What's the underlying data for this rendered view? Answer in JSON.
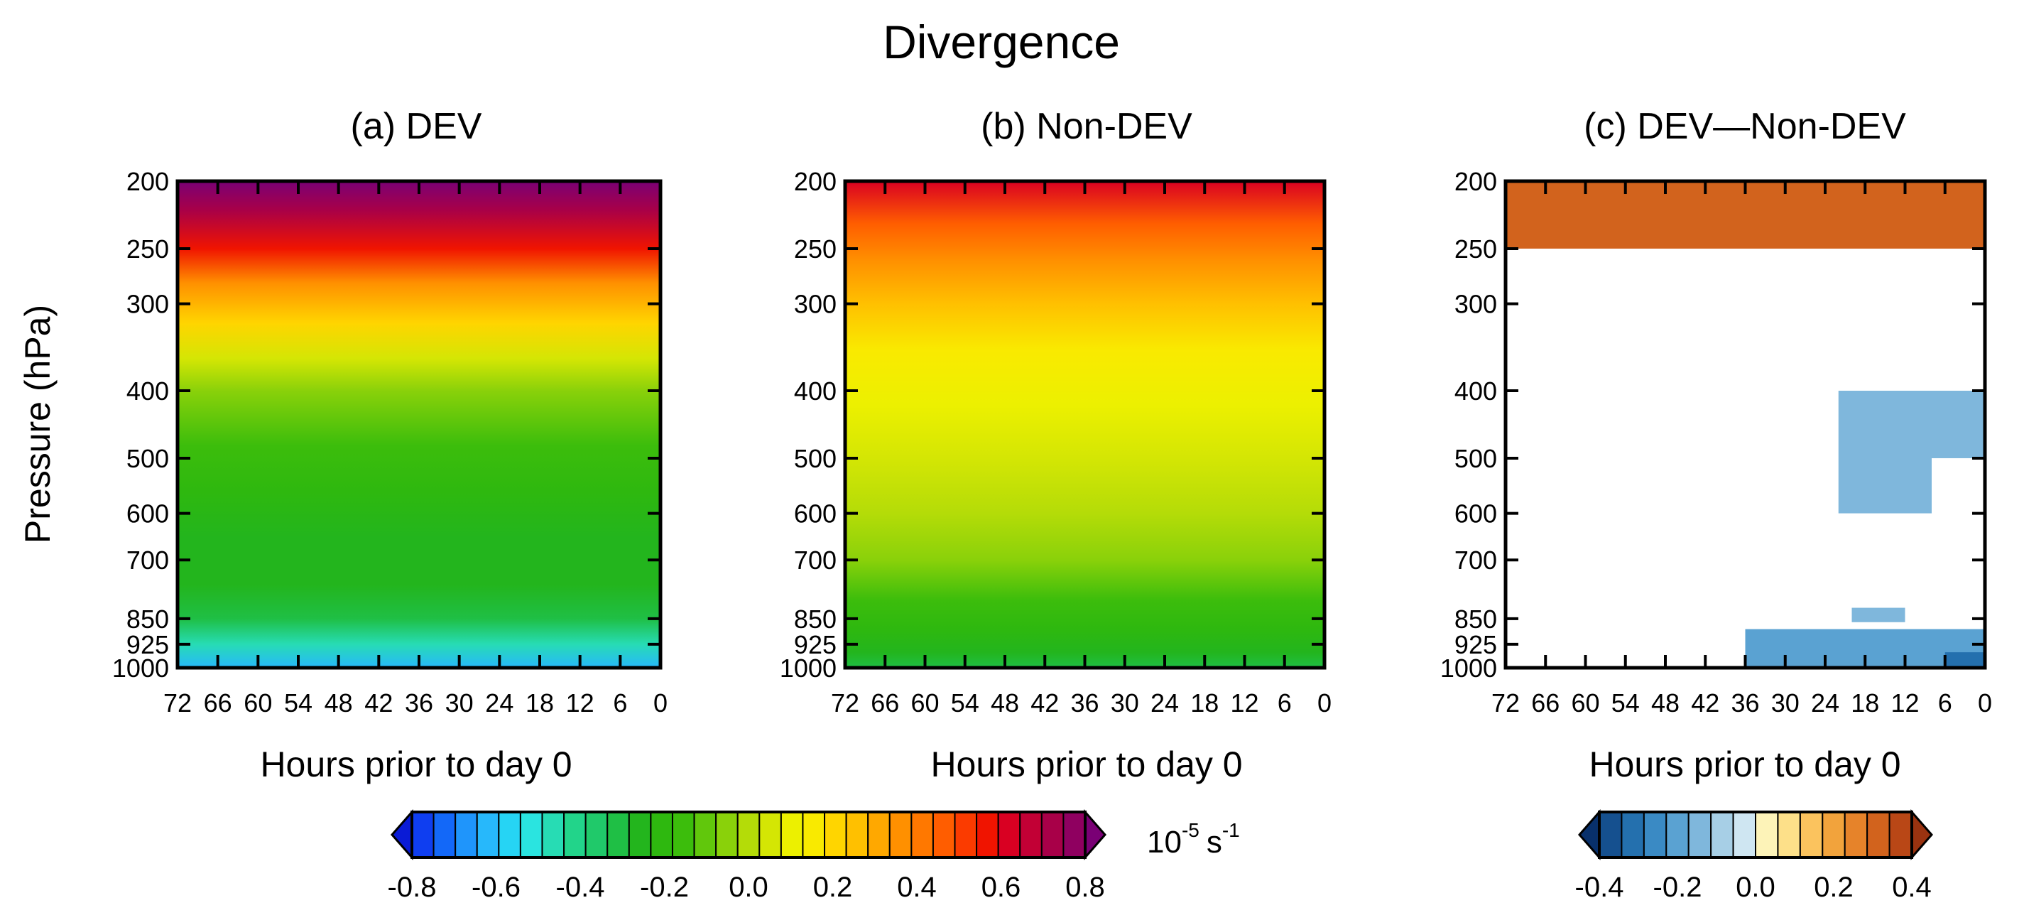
{
  "chart_data": {
    "type": "heatmap",
    "title": "Divergence",
    "units_base": "10",
    "units_exp": "-5",
    "units_rest": "s",
    "units_exp2": "-1",
    "ylabel": "Pressure (hPa)",
    "xlabel": "Hours prior to day 0",
    "x_ticks": [
      72,
      66,
      60,
      54,
      48,
      42,
      36,
      30,
      24,
      18,
      12,
      6,
      0
    ],
    "x_range": [
      72,
      0
    ],
    "y_ticks": [
      200,
      250,
      300,
      400,
      500,
      600,
      700,
      850,
      925,
      1000
    ],
    "y_range": [
      200,
      1000
    ],
    "y_scale": "log",
    "panels": [
      {
        "id": "a",
        "title": "(a) DEV",
        "description": "Strong upper-level divergence near 200 hPa, weak convergence in the low levels",
        "profile": [
          {
            "p": 200,
            "value": 0.8
          },
          {
            "p": 220,
            "value": 0.68
          },
          {
            "p": 250,
            "value": 0.52
          },
          {
            "p": 280,
            "value": 0.34
          },
          {
            "p": 320,
            "value": 0.18
          },
          {
            "p": 360,
            "value": 0.04
          },
          {
            "p": 400,
            "value": -0.06
          },
          {
            "p": 480,
            "value": -0.15
          },
          {
            "p": 560,
            "value": -0.2
          },
          {
            "p": 650,
            "value": -0.23
          },
          {
            "p": 760,
            "value": -0.26
          },
          {
            "p": 850,
            "value": -0.3
          },
          {
            "p": 925,
            "value": -0.42
          },
          {
            "p": 1000,
            "value": -0.6
          }
        ]
      },
      {
        "id": "b",
        "title": "(b) Non-DEV",
        "description": "Moderate upper-level divergence, weak low-level convergence",
        "profile": [
          {
            "p": 200,
            "value": 0.58
          },
          {
            "p": 230,
            "value": 0.45
          },
          {
            "p": 260,
            "value": 0.32
          },
          {
            "p": 300,
            "value": 0.22
          },
          {
            "p": 350,
            "value": 0.14
          },
          {
            "p": 420,
            "value": 0.08
          },
          {
            "p": 500,
            "value": 0.03
          },
          {
            "p": 600,
            "value": -0.02
          },
          {
            "p": 700,
            "value": -0.07
          },
          {
            "p": 800,
            "value": -0.13
          },
          {
            "p": 880,
            "value": -0.2
          },
          {
            "p": 950,
            "value": -0.26
          },
          {
            "p": 1000,
            "value": -0.3
          }
        ]
      },
      {
        "id": "c",
        "title": "(c) DEV—Non-DEV",
        "description": "Difference shaded only where significant",
        "regions": [
          {
            "name": "upper-positive",
            "hours": [
              72,
              0
            ],
            "p": [
              200,
              250
            ],
            "value": 0.3
          },
          {
            "name": "mid-negative-a",
            "hours": [
              22,
              8
            ],
            "p": [
              400,
              600
            ],
            "value": -0.15
          },
          {
            "name": "mid-negative-b",
            "hours": [
              8,
              0
            ],
            "p": [
              400,
              500
            ],
            "value": -0.15
          },
          {
            "name": "low-negative-a",
            "hours": [
              20,
              12
            ],
            "p": [
              820,
              860
            ],
            "value": -0.15
          },
          {
            "name": "low-negative-b",
            "hours": [
              36,
              0
            ],
            "p": [
              880,
              1000
            ],
            "value": -0.2
          },
          {
            "name": "low-negative-c",
            "hours": [
              6,
              0
            ],
            "p": [
              950,
              1000
            ],
            "value": -0.3
          }
        ]
      }
    ],
    "colorbars": [
      {
        "id": "main",
        "labels": [
          "-0.8",
          "-0.6",
          "-0.4",
          "-0.2",
          "0.0",
          "0.2",
          "0.4",
          "0.6",
          "0.8"
        ],
        "range": [
          -0.8,
          0.8
        ],
        "colors": [
          "#0a1bd6",
          "#0f3ef0",
          "#1368f8",
          "#1f95fb",
          "#27b8fb",
          "#26d4f4",
          "#2ae4e0",
          "#27dcb4",
          "#22d48a",
          "#20c96a",
          "#1fbf45",
          "#23b51d",
          "#2eb80f",
          "#3cbd0c",
          "#61c70c",
          "#8ad10a",
          "#b4dc08",
          "#d4e604",
          "#ecf000",
          "#f9ea00",
          "#ffd500",
          "#ffc000",
          "#ffa800",
          "#ff9000",
          "#ff7800",
          "#ff5d00",
          "#fb3b00",
          "#f01400",
          "#d90022",
          "#c20035",
          "#a80048",
          "#8f0060",
          "#7a0075"
        ]
      },
      {
        "id": "diff",
        "labels": [
          "-0.4",
          "-0.2",
          "0.0",
          "0.2",
          "0.4"
        ],
        "range": [
          -0.4,
          0.4
        ],
        "colors": [
          "#08306b",
          "#15508f",
          "#2470ae",
          "#3a8ac4",
          "#5aa2d2",
          "#7fb7dc",
          "#a7cfe6",
          "#cfe6f2",
          "#fdf3b8",
          "#fde089",
          "#fbc35e",
          "#f2a33c",
          "#e6832a",
          "#d2631d",
          "#b94716",
          "#9a3310"
        ]
      }
    ]
  }
}
